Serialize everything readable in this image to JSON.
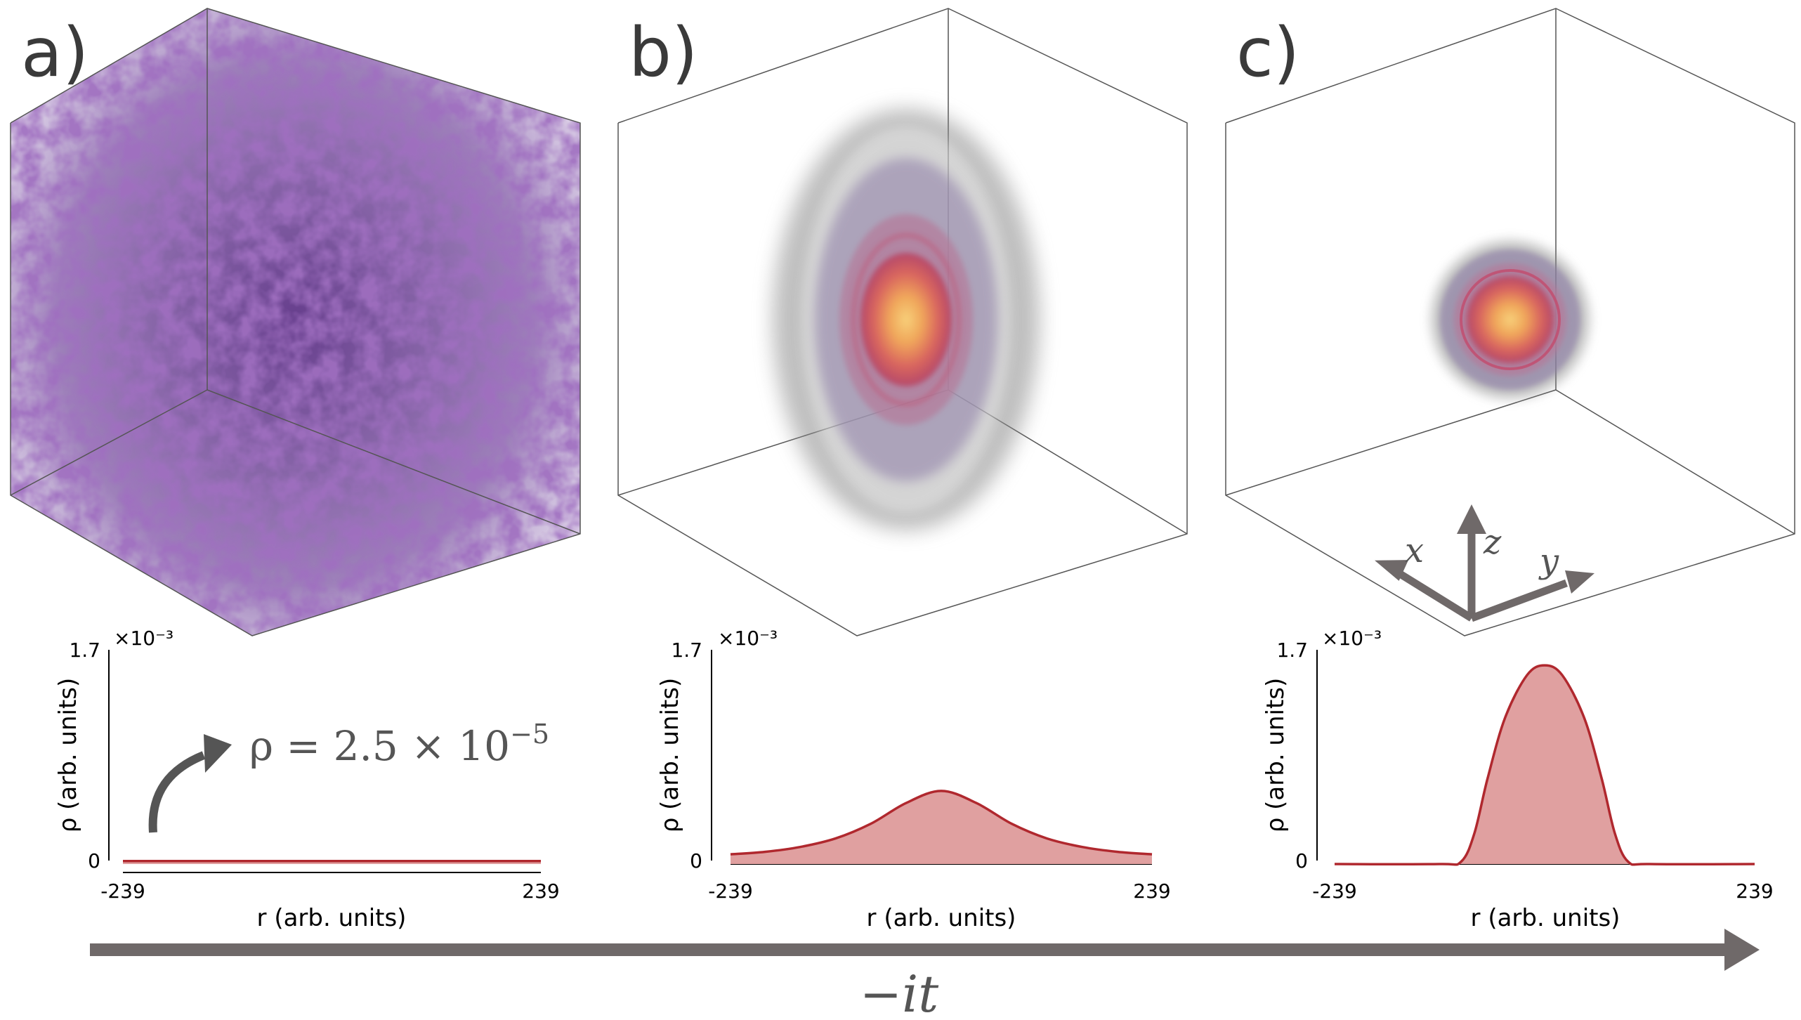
{
  "panels": [
    {
      "label": "a)"
    },
    {
      "label": "b)"
    },
    {
      "label": "c)"
    }
  ],
  "axes_triad": {
    "x": "x",
    "y": "y",
    "z": "z"
  },
  "annotation": {
    "text_prefix": "ρ = 2.5 × 10",
    "exponent": "−5"
  },
  "time_label": "−it",
  "colors": {
    "fill": "#e0a0a0",
    "line": "#b0282e",
    "cube": "#555555",
    "arrow": "#6f6969",
    "cloud": "#5a2a86"
  },
  "chart_data": [
    {
      "type": "area",
      "panel": "a",
      "title": "",
      "xlabel": "r (arb. units)",
      "ylabel": "ρ (arb. units)",
      "multiplier": "×10⁻³",
      "xlim": [
        -239,
        239
      ],
      "ylim": [
        0,
        1.7
      ],
      "xticks": [
        "-239",
        "239"
      ],
      "yticks": [
        "0",
        "1.7"
      ],
      "x": [
        -239,
        -180,
        -120,
        -60,
        0,
        60,
        120,
        180,
        239
      ],
      "y": [
        0.025,
        0.025,
        0.025,
        0.025,
        0.025,
        0.025,
        0.025,
        0.025,
        0.025
      ]
    },
    {
      "type": "area",
      "panel": "b",
      "title": "",
      "xlabel": "r (arb. units)",
      "ylabel": "ρ (arb. units)",
      "multiplier": "×10⁻³",
      "xlim": [
        -239,
        239
      ],
      "ylim": [
        0,
        1.7
      ],
      "xticks": [
        "-239",
        "239"
      ],
      "yticks": [
        "0",
        "1.7"
      ],
      "x": [
        -239,
        -200,
        -160,
        -120,
        -80,
        -40,
        0,
        40,
        80,
        120,
        160,
        200,
        239
      ],
      "y": [
        0.08,
        0.1,
        0.14,
        0.21,
        0.33,
        0.5,
        0.6,
        0.5,
        0.33,
        0.21,
        0.14,
        0.1,
        0.08
      ]
    },
    {
      "type": "area",
      "panel": "c",
      "title": "",
      "xlabel": "r (arb. units)",
      "ylabel": "ρ (arb. units)",
      "multiplier": "×10⁻³",
      "xlim": [
        -239,
        239
      ],
      "ylim": [
        0,
        1.7
      ],
      "xticks": [
        "-239",
        "239"
      ],
      "yticks": [
        "0",
        "1.7"
      ],
      "x": [
        -239,
        -120,
        -95,
        -80,
        -65,
        -45,
        -20,
        0,
        20,
        45,
        65,
        80,
        95,
        120,
        239
      ],
      "y": [
        0,
        0,
        0.02,
        0.25,
        0.7,
        1.2,
        1.55,
        1.63,
        1.55,
        1.2,
        0.7,
        0.25,
        0.02,
        0,
        0
      ]
    }
  ]
}
